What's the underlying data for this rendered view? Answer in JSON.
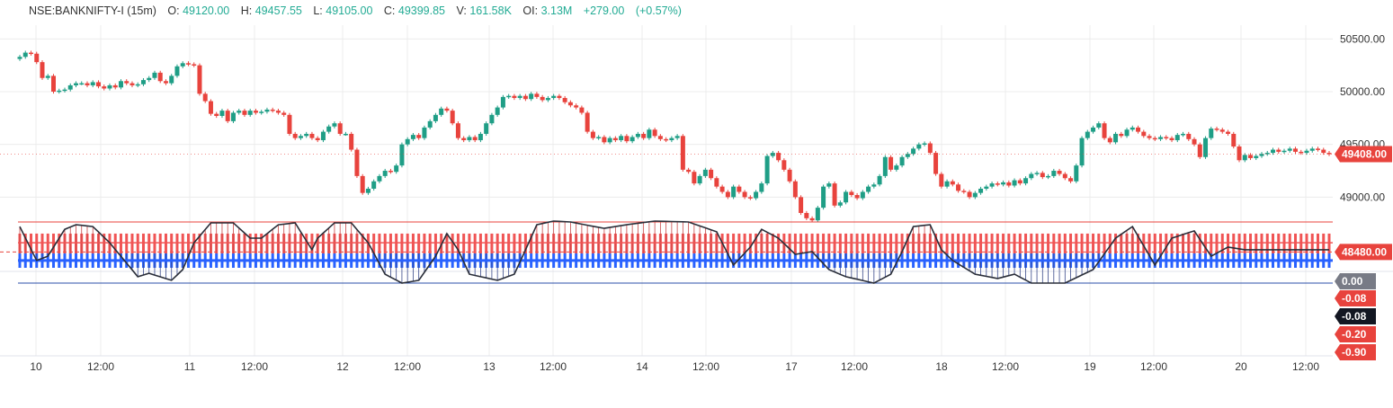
{
  "legend": {
    "symbol": "NSE:BANKNIFTY-I (15m)",
    "o_label": "O:",
    "o": "49120.00",
    "h_label": "H:",
    "h": "49457.55",
    "l_label": "L:",
    "l": "49105.00",
    "c_label": "C:",
    "c": "49399.85",
    "v_label": "V:",
    "v": "161.58K",
    "oi_label": "OI:",
    "oi": "3.13M",
    "change": "+279.00",
    "change_pct": "(+0.57%)"
  },
  "colors": {
    "up": "#1f9e86",
    "down": "#e8433d",
    "blue": "#2962ff",
    "red_band": "#f05454",
    "curve": "#2a2e39",
    "grid": "#ececec"
  },
  "chart_data": {
    "type": "candlestick",
    "interval": "15m",
    "y_ticks": [
      "50500.00",
      "50000.00",
      "49500.00",
      "49000.00"
    ],
    "ylim": [
      48400,
      50600
    ],
    "x_ticks": [
      "10",
      "12:00",
      "11",
      "12:00",
      "12",
      "12:00",
      "13",
      "12:00",
      "14",
      "12:00",
      "17",
      "12:00",
      "18",
      "12:00",
      "19",
      "12:00",
      "20",
      "12:00"
    ],
    "last_price_label": "49408.00",
    "horizontal_line": {
      "value": 48480,
      "label": "48480.00"
    },
    "close": [
      50330,
      50370,
      50360,
      50280,
      50130,
      50150,
      50000,
      50010,
      50020,
      50060,
      50080,
      50080,
      50060,
      50090,
      50050,
      50030,
      50060,
      50040,
      50100,
      50080,
      50060,
      50070,
      50110,
      50130,
      50180,
      50100,
      50080,
      50150,
      50240,
      50270,
      50260,
      50250,
      49980,
      49910,
      49790,
      49770,
      49820,
      49720,
      49800,
      49820,
      49780,
      49820,
      49800,
      49810,
      49830,
      49820,
      49800,
      49780,
      49600,
      49560,
      49580,
      49600,
      49560,
      49540,
      49620,
      49670,
      49700,
      49600,
      49600,
      49450,
      49200,
      49040,
      49080,
      49150,
      49200,
      49250,
      49240,
      49300,
      49500,
      49550,
      49590,
      49560,
      49660,
      49720,
      49780,
      49840,
      49820,
      49700,
      49560,
      49540,
      49570,
      49540,
      49600,
      49700,
      49780,
      49850,
      49950,
      49960,
      49940,
      49960,
      49930,
      49980,
      49950,
      49920,
      49940,
      49960,
      49940,
      49900,
      49870,
      49850,
      49800,
      49620,
      49560,
      49570,
      49520,
      49560,
      49540,
      49580,
      49530,
      49570,
      49600,
      49560,
      49640,
      49580,
      49550,
      49540,
      49560,
      49580,
      49260,
      49240,
      49130,
      49200,
      49260,
      49180,
      49100,
      49050,
      49000,
      49100,
      49050,
      49000,
      48990,
      49050,
      49130,
      49390,
      49420,
      49350,
      49260,
      49150,
      49000,
      48850,
      48800,
      48780,
      48900,
      49100,
      49130,
      48920,
      48950,
      49050,
      49020,
      48990,
      49050,
      49100,
      49120,
      49200,
      49380,
      49260,
      49300,
      49380,
      49410,
      49460,
      49500,
      49510,
      49420,
      49220,
      49100,
      49150,
      49120,
      49060,
      49050,
      49000,
      49040,
      49080,
      49100,
      49130,
      49120,
      49140,
      49110,
      49160,
      49130,
      49180,
      49220,
      49230,
      49190,
      49200,
      49250,
      49220,
      49180,
      49150,
      49300,
      49560,
      49620,
      49660,
      49700,
      49560,
      49520,
      49600,
      49580,
      49640,
      49660,
      49620,
      49580,
      49560,
      49550,
      49570,
      49560,
      49540,
      49590,
      49600,
      49550,
      49500,
      49380,
      49560,
      49650,
      49640,
      49620,
      49600,
      49480,
      49350,
      49400,
      49370,
      49390,
      49410,
      49420,
      49450,
      49430,
      49440,
      49460,
      49430,
      49420,
      49440,
      49460,
      49450,
      49420,
      49408
    ],
    "indicator": {
      "labels": [
        "0.00",
        "-0.08",
        "-0.08",
        "-0.20",
        "-0.90"
      ],
      "zero_line": 0.0,
      "lower_line": -0.2,
      "blue_band": [
        -0.05,
        -0.097
      ],
      "red_band": [
        -0.097,
        -0.162
      ],
      "curve": [
        [
          0,
          -0.185
        ],
        [
          3,
          -0.074
        ],
        [
          5,
          -0.088
        ],
        [
          8,
          -0.176
        ],
        [
          10,
          -0.191
        ],
        [
          13,
          -0.185
        ],
        [
          16,
          -0.132
        ],
        [
          21,
          -0.021
        ],
        [
          23,
          -0.032
        ],
        [
          27,
          -0.009
        ],
        [
          29,
          -0.044
        ],
        [
          31,
          -0.132
        ],
        [
          34,
          -0.197
        ],
        [
          38,
          -0.197
        ],
        [
          41,
          -0.147
        ],
        [
          43,
          -0.147
        ],
        [
          46,
          -0.191
        ],
        [
          49,
          -0.197
        ],
        [
          52,
          -0.109
        ],
        [
          53,
          -0.147
        ],
        [
          56,
          -0.197
        ],
        [
          59,
          -0.197
        ],
        [
          62,
          -0.132
        ],
        [
          65,
          -0.029
        ],
        [
          68,
          0.0
        ],
        [
          71,
          -0.009
        ],
        [
          74,
          -0.088
        ],
        [
          76,
          -0.162
        ],
        [
          78,
          -0.109
        ],
        [
          80,
          -0.029
        ],
        [
          85,
          -0.009
        ],
        [
          88,
          -0.029
        ],
        [
          90,
          -0.109
        ],
        [
          92,
          -0.191
        ],
        [
          95,
          -0.203
        ],
        [
          98,
          -0.2
        ],
        [
          104,
          -0.179
        ],
        [
          108,
          -0.191
        ],
        [
          113,
          -0.203
        ],
        [
          119,
          -0.2
        ],
        [
          124,
          -0.168
        ],
        [
          127,
          -0.059
        ],
        [
          130,
          -0.118
        ],
        [
          132,
          -0.176
        ],
        [
          135,
          -0.147
        ],
        [
          138,
          -0.094
        ],
        [
          141,
          -0.103
        ],
        [
          144,
          -0.044
        ],
        [
          147,
          -0.021
        ],
        [
          152,
          0.0
        ],
        [
          155,
          -0.029
        ],
        [
          157,
          -0.103
        ],
        [
          159,
          -0.185
        ],
        [
          162,
          -0.191
        ],
        [
          164,
          -0.109
        ],
        [
          166,
          -0.074
        ],
        [
          170,
          -0.029
        ],
        [
          174,
          -0.015
        ],
        [
          177,
          -0.029
        ],
        [
          180,
          0.0
        ],
        [
          186,
          0.0
        ],
        [
          191,
          -0.044
        ],
        [
          195,
          -0.147
        ],
        [
          198,
          -0.185
        ],
        [
          202,
          -0.059
        ],
        [
          205,
          -0.147
        ],
        [
          209,
          -0.171
        ],
        [
          212,
          -0.088
        ],
        [
          215,
          -0.118
        ],
        [
          218,
          -0.109
        ]
      ]
    }
  }
}
